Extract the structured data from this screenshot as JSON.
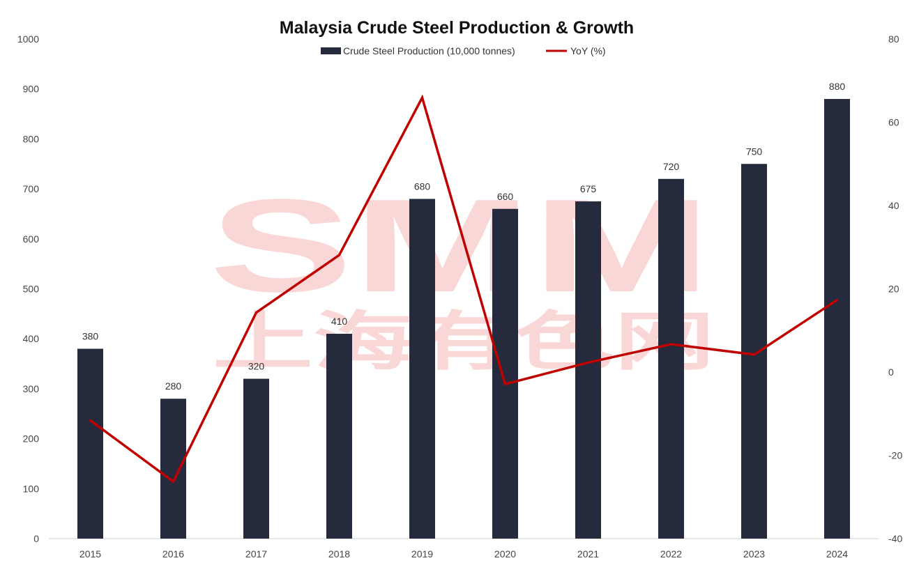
{
  "watermark": {
    "logo_text": "SMM",
    "sub_text": "上海有色网"
  },
  "chart_data": {
    "type": "bar",
    "title": "Malaysia Crude Steel Production & Growth",
    "categories": [
      "2015",
      "2016",
      "2017",
      "2018",
      "2019",
      "2020",
      "2021",
      "2022",
      "2023",
      "2024"
    ],
    "legend_position": "top-center",
    "grid": false,
    "series": [
      {
        "name": "Crude Steel Production (10,000 tonnes)",
        "type": "bar",
        "axis": "left",
        "color": "#252a3d",
        "values": [
          380,
          280,
          320,
          410,
          680,
          660,
          675,
          720,
          750,
          880
        ],
        "data_labels": [
          "380",
          "280",
          "320",
          "410",
          "680",
          "660",
          "675",
          "720",
          "750",
          "880"
        ]
      },
      {
        "name": "YoY (%)",
        "type": "line",
        "axis": "right",
        "color": "#c00000",
        "values": [
          -11.6,
          -26.3,
          14.3,
          28.1,
          65.9,
          -2.9,
          2.3,
          6.7,
          4.2,
          17.3
        ]
      }
    ],
    "y_left": {
      "min": 0,
      "max": 1000,
      "ticks": [
        "0",
        "100",
        "200",
        "300",
        "400",
        "500",
        "600",
        "700",
        "800",
        "900",
        "1000"
      ]
    },
    "y_right": {
      "min": -40,
      "max": 80,
      "ticks": [
        "-40",
        "-20",
        "0",
        "20",
        "40",
        "60",
        "80"
      ]
    }
  }
}
